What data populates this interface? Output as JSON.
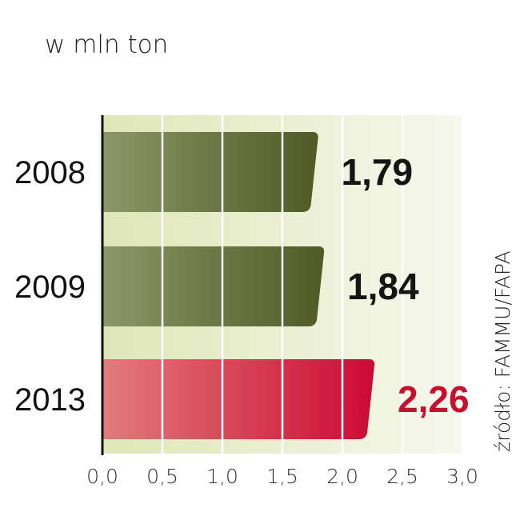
{
  "chart_data": {
    "type": "bar",
    "orientation": "horizontal",
    "unit_label": "w mln ton",
    "categories": [
      "2008",
      "2009",
      "2013"
    ],
    "values": [
      1.79,
      1.84,
      2.26
    ],
    "value_labels": [
      "1,79",
      "1,84",
      "2,26"
    ],
    "xlim": [
      0,
      3.0
    ],
    "x_ticks": [
      "0,0",
      "0,5",
      "1,0",
      "1,5",
      "2,0",
      "2,5",
      "3,0"
    ],
    "grid": true,
    "source": "źródło: FAMMU/FAPA",
    "colors": {
      "bar_default_start": "#8c9668",
      "bar_default_end": "#4f5a24",
      "bar_highlight_start": "#e27b7b",
      "bar_highlight_end": "#cc0a33",
      "value_default": "#151515",
      "value_highlight": "#c8102e",
      "background_start": "#dfe6b6",
      "background_end": "#f7f8ee"
    },
    "highlight_index": 2
  }
}
